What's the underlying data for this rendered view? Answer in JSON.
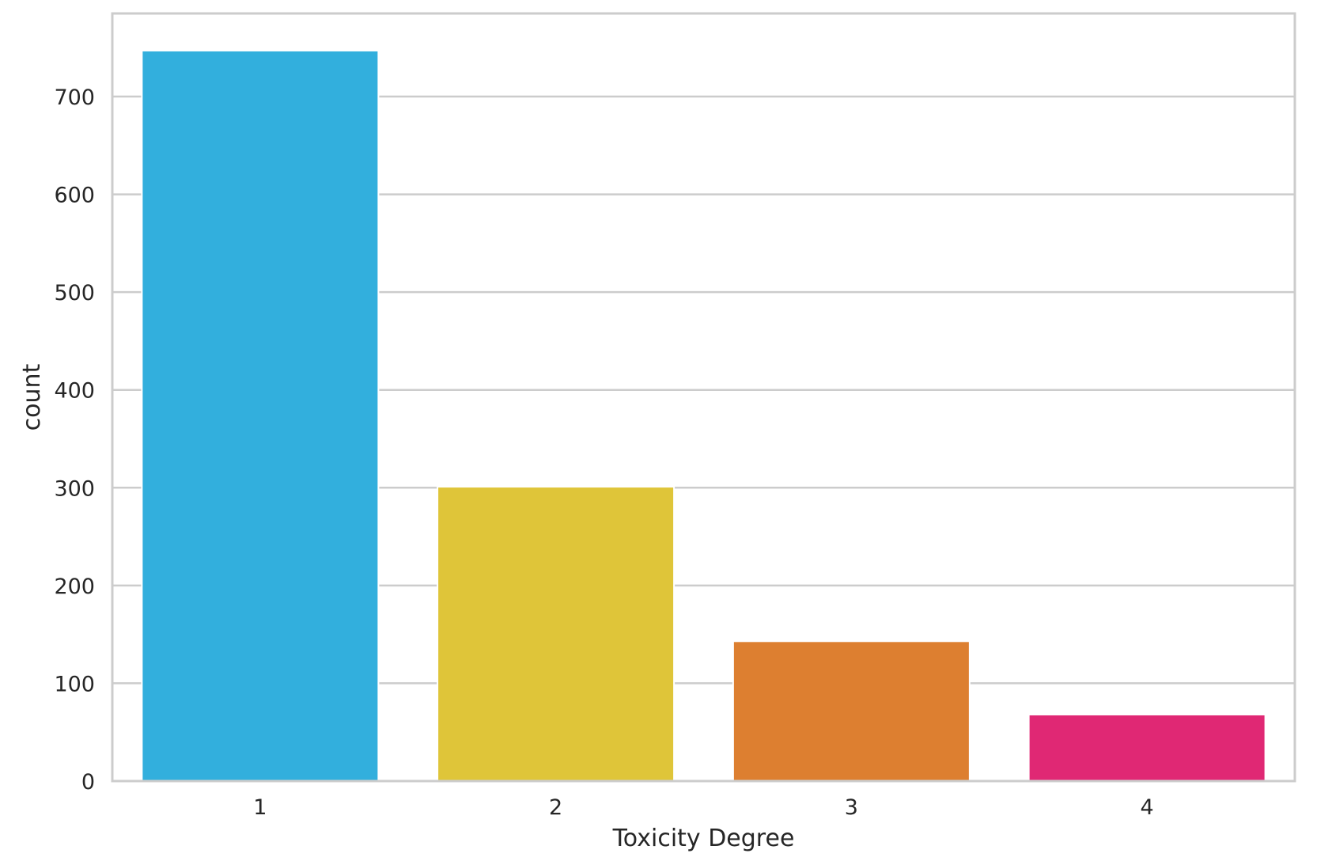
{
  "chart_data": {
    "type": "bar",
    "categories": [
      "1",
      "2",
      "3",
      "4"
    ],
    "values": [
      747,
      301,
      143,
      68
    ],
    "colors": [
      "#32afdd",
      "#dfc539",
      "#dd7f30",
      "#e02874"
    ],
    "title": "",
    "xlabel": "Toxicity Degree",
    "ylabel": "count",
    "ylim": [
      0,
      785
    ],
    "yticks": [
      0,
      100,
      200,
      300,
      400,
      500,
      600,
      700
    ],
    "grid": true,
    "grid_axis": "y",
    "legend": "none"
  }
}
